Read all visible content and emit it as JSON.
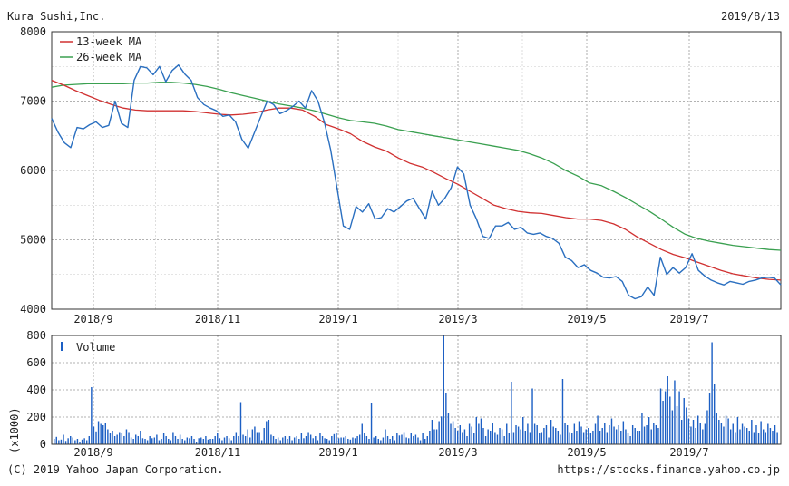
{
  "header": {
    "company": "Kura Sushi,Inc.",
    "date": "2019/8/13"
  },
  "footer": {
    "copyright": "(C) 2019 Yahoo Japan Corporation.",
    "url": "https://stocks.finance.yahoo.co.jp"
  },
  "colors": {
    "price": "#2a6fc0",
    "ma13": "#d03030",
    "ma26": "#3aa050",
    "volume": "#1c5fc4",
    "grid": "#999999",
    "axis": "#333333"
  },
  "chart_data": [
    {
      "type": "line",
      "title": "",
      "x_ticks": [
        "2018/9",
        "2018/11",
        "2019/1",
        "2019/3",
        "2019/5",
        "2019/7"
      ],
      "ylim": [
        4000,
        8000
      ],
      "y_ticks": [
        "4000",
        "5000",
        "6000",
        "7000",
        "8000"
      ],
      "grid": true,
      "legend_position": "top-left",
      "series": [
        {
          "name": "",
          "key": "price",
          "values": [
            6750,
            6550,
            6400,
            6330,
            6620,
            6600,
            6660,
            6700,
            6620,
            6650,
            7000,
            6680,
            6620,
            7300,
            7500,
            7480,
            7380,
            7500,
            7280,
            7440,
            7520,
            7390,
            7300,
            7050,
            6950,
            6900,
            6860,
            6780,
            6800,
            6700,
            6450,
            6320,
            6550,
            6780,
            7000,
            6950,
            6820,
            6860,
            6920,
            7000,
            6900,
            7150,
            7000,
            6700,
            6300,
            5750,
            5200,
            5150,
            5480,
            5400,
            5520,
            5300,
            5320,
            5450,
            5400,
            5480,
            5560,
            5600,
            5450,
            5300,
            5700,
            5500,
            5600,
            5750,
            6050,
            5950,
            5500,
            5300,
            5050,
            5020,
            5200,
            5200,
            5250,
            5150,
            5180,
            5100,
            5080,
            5100,
            5050,
            5020,
            4950,
            4750,
            4700,
            4600,
            4640,
            4560,
            4520,
            4460,
            4450,
            4470,
            4400,
            4200,
            4150,
            4180,
            4320,
            4200,
            4750,
            4500,
            4600,
            4520,
            4600,
            4800,
            4560,
            4480,
            4420,
            4380,
            4350,
            4400,
            4380,
            4360,
            4400,
            4420,
            4450,
            4460,
            4450,
            4350
          ]
        },
        {
          "name": "13-week MA",
          "key": "ma13",
          "values": [
            7300,
            7230,
            7150,
            7080,
            7010,
            6950,
            6900,
            6870,
            6860,
            6860,
            6860,
            6860,
            6850,
            6830,
            6810,
            6800,
            6810,
            6830,
            6870,
            6900,
            6900,
            6870,
            6780,
            6660,
            6600,
            6530,
            6420,
            6340,
            6280,
            6180,
            6100,
            6050,
            5970,
            5880,
            5800,
            5700,
            5600,
            5500,
            5450,
            5410,
            5390,
            5380,
            5350,
            5320,
            5300,
            5300,
            5280,
            5230,
            5150,
            5040,
            4950,
            4860,
            4790,
            4740,
            4680,
            4620,
            4560,
            4510,
            4480,
            4450,
            4430,
            4420
          ]
        },
        {
          "name": "26-week MA",
          "key": "ma26",
          "values": [
            7200,
            7230,
            7240,
            7250,
            7250,
            7250,
            7250,
            7260,
            7260,
            7270,
            7270,
            7260,
            7240,
            7210,
            7170,
            7120,
            7080,
            7040,
            7000,
            6960,
            6930,
            6900,
            6860,
            6810,
            6760,
            6720,
            6700,
            6680,
            6640,
            6590,
            6560,
            6530,
            6500,
            6470,
            6440,
            6410,
            6380,
            6350,
            6320,
            6290,
            6240,
            6180,
            6100,
            6000,
            5920,
            5820,
            5780,
            5700,
            5610,
            5510,
            5410,
            5300,
            5180,
            5080,
            5020,
            4980,
            4950,
            4920,
            4900,
            4880,
            4860,
            4850
          ]
        }
      ]
    },
    {
      "type": "bar",
      "title": "",
      "ylabel": "(x1000)",
      "ylim": [
        0,
        800
      ],
      "y_ticks": [
        "0",
        "200",
        "400",
        "600",
        "800"
      ],
      "x_ticks": [
        "2018/9",
        "2018/11",
        "2019/1",
        "2019/3",
        "2019/5",
        "2019/7"
      ],
      "grid": true,
      "legend_position": "top-left",
      "series": [
        {
          "name": "Volume",
          "values": [
            40,
            55,
            30,
            35,
            70,
            25,
            45,
            60,
            50,
            30,
            40,
            20,
            35,
            45,
            30,
            60,
            420,
            130,
            95,
            170,
            150,
            140,
            160,
            110,
            80,
            100,
            60,
            70,
            90,
            80,
            60,
            110,
            90,
            50,
            40,
            70,
            60,
            100,
            45,
            40,
            30,
            60,
            45,
            50,
            70,
            30,
            40,
            80,
            60,
            40,
            30,
            90,
            60,
            40,
            70,
            40,
            30,
            50,
            45,
            60,
            40,
            20,
            45,
            50,
            40,
            60,
            35,
            40,
            40,
            60,
            80,
            45,
            30,
            50,
            60,
            45,
            30,
            60,
            90,
            60,
            310,
            70,
            60,
            110,
            50,
            110,
            130,
            90,
            90,
            30,
            120,
            170,
            180,
            70,
            60,
            40,
            50,
            30,
            50,
            60,
            40,
            60,
            30,
            50,
            60,
            40,
            80,
            45,
            60,
            90,
            70,
            45,
            60,
            30,
            80,
            60,
            45,
            40,
            30,
            60,
            75,
            80,
            45,
            50,
            50,
            60,
            40,
            35,
            50,
            45,
            60,
            70,
            150,
            80,
            60,
            40,
            300,
            50,
            60,
            40,
            30,
            50,
            110,
            60,
            40,
            60,
            30,
            80,
            65,
            70,
            90,
            50,
            45,
            80,
            60,
            70,
            50,
            30,
            80,
            40,
            60,
            100,
            180,
            110,
            110,
            170,
            205,
            800,
            380,
            230,
            150,
            170,
            120,
            100,
            140,
            90,
            110,
            60,
            150,
            130,
            80,
            200,
            150,
            190,
            120,
            60,
            110,
            100,
            160,
            90,
            70,
            120,
            110,
            60,
            150,
            80,
            460,
            90,
            140,
            130,
            110,
            200,
            100,
            150,
            90,
            410,
            150,
            140,
            80,
            90,
            120,
            140,
            50,
            180,
            130,
            120,
            100,
            70,
            480,
            160,
            140,
            90,
            80,
            150,
            100,
            170,
            130,
            90,
            110,
            120,
            80,
            100,
            150,
            210,
            100,
            120,
            160,
            90,
            140,
            190,
            130,
            110,
            140,
            100,
            170,
            110,
            80,
            60,
            140,
            120,
            100,
            100,
            230,
            130,
            140,
            200,
            110,
            160,
            140,
            120,
            410,
            320,
            390,
            500,
            350,
            250,
            470,
            280,
            390,
            180,
            340,
            270,
            190,
            130,
            180,
            120,
            210,
            160,
            110,
            150,
            250,
            380,
            750,
            440,
            230,
            180,
            160,
            130,
            210,
            190,
            110,
            150,
            90,
            200,
            110,
            150,
            130,
            120,
            100,
            180,
            90,
            140,
            80,
            170,
            110,
            90,
            150,
            120,
            100,
            140,
            90
          ]
        }
      ]
    }
  ]
}
